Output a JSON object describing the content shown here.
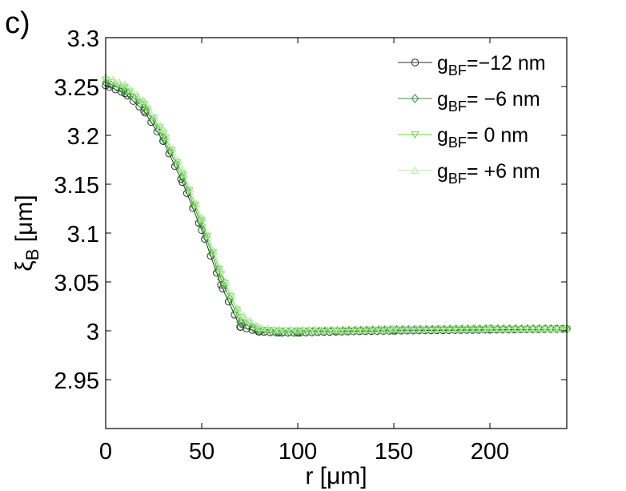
{
  "panel_label": "c)",
  "chart_data": {
    "type": "line",
    "xlabel": "r [μm]",
    "ylabel_main": "ξ",
    "ylabel_sub": "B",
    "ylabel_unit": " [μm]",
    "xlim": [
      0,
      240
    ],
    "ylim": [
      2.9,
      3.3
    ],
    "xticks": [
      0,
      50,
      100,
      150,
      200
    ],
    "yticks": [
      3.3,
      3.25,
      3.2,
      3.15,
      3.1,
      3.05,
      3.0,
      2.95
    ],
    "ytick_labels": [
      "3.3",
      "3.25",
      "3.2",
      "3.15",
      "3.1",
      "3.05",
      "3",
      "2.95"
    ],
    "grid": false,
    "legend_position": "top-right",
    "series": [
      {
        "name": "g_BF=−12 nm",
        "legend_prefix": "g",
        "legend_sub": "BF",
        "legend_suffix": "=−12 nm",
        "marker": "circle",
        "color": "#1e3a1e",
        "x": [
          0,
          10,
          20,
          30,
          40,
          50,
          60,
          70,
          80,
          90,
          100,
          120,
          150,
          200,
          240
        ],
        "y": [
          3.251,
          3.243,
          3.225,
          3.194,
          3.152,
          3.103,
          3.047,
          3.004,
          2.999,
          2.998,
          2.998,
          2.999,
          3.0,
          3.001,
          3.002
        ]
      },
      {
        "name": "g_BF= −6 nm",
        "legend_prefix": "g",
        "legend_sub": "BF",
        "legend_suffix": "=  −6 nm",
        "marker": "diamond",
        "color": "#3d8f3d",
        "x": [
          0,
          10,
          20,
          30,
          40,
          50,
          60,
          70,
          80,
          90,
          100,
          120,
          150,
          200,
          240
        ],
        "y": [
          3.254,
          3.246,
          3.229,
          3.198,
          3.157,
          3.108,
          3.053,
          3.009,
          3.0,
          2.999,
          2.999,
          3.0,
          3.001,
          3.002,
          3.002
        ]
      },
      {
        "name": "g_BF= 0 nm",
        "legend_prefix": "g",
        "legend_sub": "BF",
        "legend_suffix": "=   0 nm",
        "marker": "triangle-down",
        "color": "#6fd04a",
        "x": [
          0,
          10,
          20,
          30,
          40,
          50,
          60,
          70,
          80,
          90,
          100,
          120,
          150,
          200,
          240
        ],
        "y": [
          3.257,
          3.249,
          3.232,
          3.202,
          3.161,
          3.112,
          3.058,
          3.014,
          3.001,
          3.0,
          3.0,
          3.0,
          3.001,
          3.002,
          3.002
        ]
      },
      {
        "name": "g_BF= +6 nm",
        "legend_prefix": "g",
        "legend_sub": "BF",
        "legend_suffix": "= +6 nm",
        "marker": "triangle-up",
        "color": "#b4ecaa",
        "x": [
          0,
          10,
          20,
          30,
          40,
          50,
          60,
          70,
          80,
          90,
          100,
          120,
          150,
          200,
          240
        ],
        "y": [
          3.26,
          3.252,
          3.235,
          3.206,
          3.165,
          3.116,
          3.062,
          3.018,
          3.003,
          3.001,
          3.001,
          3.001,
          3.002,
          3.002,
          3.002
        ]
      }
    ]
  }
}
